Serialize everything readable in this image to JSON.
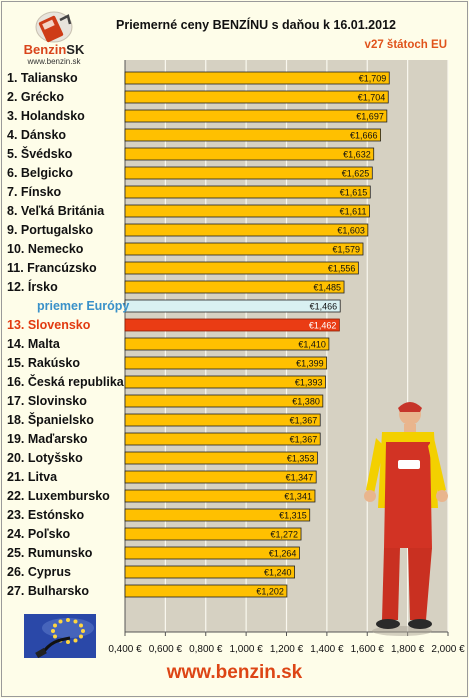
{
  "logo": {
    "name_part1": "Benzin",
    "name_part2": "SK",
    "url": "www.benzin.sk"
  },
  "header": {
    "title": "Priemerné ceny BENZÍNU s daňou k 16.01.2012",
    "subtitle": "v27 štátoch EU"
  },
  "footer": {
    "url": "www.benzin.sk"
  },
  "colors": {
    "bar": "#ffc000",
    "highlight_bar": "#ea3c14",
    "average_bar": "#d9f1f2",
    "plot_bg": "#d6d1c2",
    "grid": "#faf8ef"
  },
  "chart_data": {
    "type": "bar",
    "orientation": "horizontal",
    "title": "Priemerné ceny BENZÍNU s daňou k 16.01.2012",
    "subtitle": "v27 štátoch EU",
    "xlim": [
      0.4,
      2.0
    ],
    "x_ticks": [
      "0,400 €",
      "0,600 €",
      "0,800 €",
      "1,000 €",
      "1,200 €",
      "1,400 €",
      "1,600 €",
      "1,800 €",
      "2,000 €"
    ],
    "grid": true,
    "categories": [
      "1. Taliansko",
      "2. Grécko",
      "3. Holandsko",
      "4. Dánsko",
      "5. Švédsko",
      "6. Belgicko",
      "7. Fínsko",
      "8. Veľká Británia",
      "9. Portugalsko",
      "10. Nemecko",
      "11. Francúzsko",
      "12. Írsko",
      "priemer Európy",
      "13. Slovensko",
      "14. Malta",
      "15. Rakúsko",
      "16. Česká republika",
      "17. Slovinsko",
      "18. Španielsko",
      "19. Maďarsko",
      "20. Lotyšsko",
      "21. Litva",
      "22. Luxembursko",
      "23. Estónsko",
      "24. Poľsko",
      "25. Rumunsko",
      "26. Cyprus",
      "27. Bulharsko"
    ],
    "values": [
      1.709,
      1.704,
      1.697,
      1.666,
      1.632,
      1.625,
      1.615,
      1.611,
      1.603,
      1.579,
      1.556,
      1.485,
      1.466,
      1.462,
      1.41,
      1.399,
      1.393,
      1.38,
      1.367,
      1.367,
      1.353,
      1.347,
      1.341,
      1.315,
      1.272,
      1.264,
      1.24,
      1.202
    ],
    "value_labels": [
      "€1,709",
      "€1,704",
      "€1,697",
      "€1,666",
      "€1,632",
      "€1,625",
      "€1,615",
      "€1,611",
      "€1,603",
      "€1,579",
      "€1,556",
      "€1,485",
      "€1,466",
      "€1,462",
      "€1,410",
      "€1,399",
      "€1,393",
      "€1,380",
      "€1,367",
      "€1,367",
      "€1,353",
      "€1,347",
      "€1,341",
      "€1,315",
      "€1,272",
      "€1,264",
      "€1,240",
      "€1,202"
    ],
    "highlight_index": 13,
    "average_index": 12
  }
}
